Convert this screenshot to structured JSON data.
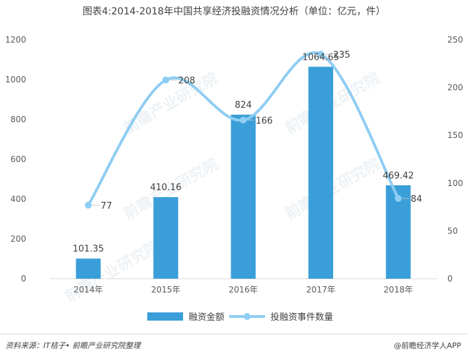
{
  "title": "图表4:2014-2018年中国共享经济投融资情况分析（单位：亿元，件）",
  "chart_data": {
    "type": "bar",
    "categories": [
      "2014年",
      "2015年",
      "2016年",
      "2017年",
      "2018年"
    ],
    "series": [
      {
        "name": "融资金额",
        "type": "bar",
        "axis": "left",
        "values": [
          101.35,
          410.16,
          824,
          1064.65,
          469.42
        ],
        "labels": [
          "101.35",
          "410.16",
          "824",
          "1064.65",
          "469.42"
        ],
        "color": "#3a9fd8"
      },
      {
        "name": "投融资事件数量",
        "type": "line",
        "axis": "right",
        "values": [
          77,
          208,
          166,
          235,
          84
        ],
        "labels": [
          "77",
          "208",
          "166",
          "235",
          "84"
        ],
        "color": "#8fcdf3"
      }
    ],
    "left_axis": {
      "min": 0,
      "max": 1200,
      "ticks": [
        0,
        200,
        400,
        600,
        800,
        1000,
        1200
      ]
    },
    "right_axis": {
      "min": 0,
      "max": 250,
      "ticks": [
        0,
        50,
        100,
        150,
        200,
        250
      ]
    },
    "legend_position": "bottom",
    "grid": false
  },
  "footer": {
    "source": "资料来源：IT桔子• 前瞻产业研究院整理",
    "brand": "@前瞻经济学人APP"
  },
  "watermark": "前瞻产业研究院"
}
